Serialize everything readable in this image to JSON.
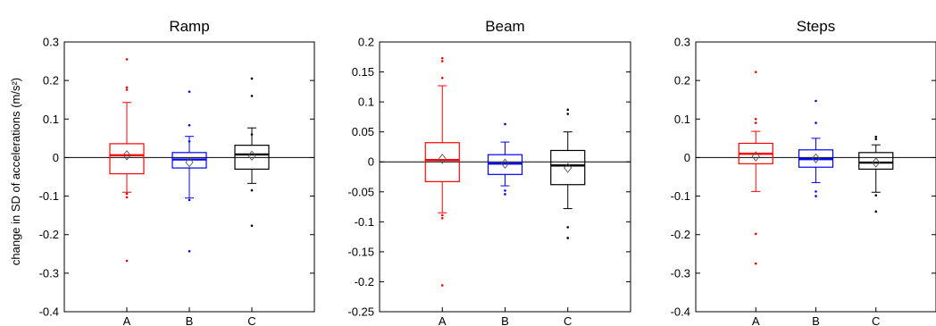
{
  "ylabel": "change in SD of accelerations (m/s²)",
  "chart_data": [
    {
      "type": "box",
      "title": "Ramp",
      "categories": [
        "A",
        "B",
        "C"
      ],
      "ylim": [
        -0.4,
        0.3
      ],
      "yticks": [
        -0.4,
        -0.3,
        -0.2,
        -0.1,
        0,
        0.1,
        0.2,
        0.3
      ],
      "ytick_labels": [
        "-0.4",
        "-0.3",
        "-0.2",
        "-0.1",
        "0",
        "0.1",
        "0.2",
        "0.3"
      ],
      "reference_line": 0,
      "boxes": [
        {
          "category": "A",
          "color": "#ff0000",
          "q1": -0.042,
          "median": 0.006,
          "q3": 0.036,
          "whisker_low": -0.09,
          "whisker_high": 0.143,
          "mean": 0.006,
          "outliers": [
            0.255,
            0.182,
            0.176,
            -0.094,
            -0.103,
            -0.268
          ]
        },
        {
          "category": "B",
          "color": "#0000ff",
          "q1": -0.027,
          "median": -0.005,
          "q3": 0.013,
          "whisker_low": -0.105,
          "whisker_high": 0.055,
          "mean": -0.012,
          "outliers": [
            0.171,
            0.084,
            0.042,
            -0.11,
            -0.243
          ]
        },
        {
          "category": "C",
          "color": "#000000",
          "q1": -0.03,
          "median": 0.008,
          "q3": 0.032,
          "whisker_low": -0.067,
          "whisker_high": 0.077,
          "mean": 0.005,
          "outliers": [
            0.205,
            0.16,
            0.06,
            -0.085,
            -0.177
          ]
        }
      ]
    },
    {
      "type": "box",
      "title": "Beam",
      "categories": [
        "A",
        "B",
        "C"
      ],
      "ylim": [
        -0.25,
        0.2
      ],
      "yticks": [
        -0.25,
        -0.2,
        -0.15,
        -0.1,
        -0.05,
        0,
        0.05,
        0.1,
        0.15,
        0.2
      ],
      "ytick_labels": [
        "-0.25",
        "-0.2",
        "-0.15",
        "-0.1",
        "-0.05",
        "0",
        "0.05",
        "0.1",
        "0.15",
        "0.2"
      ],
      "reference_line": 0,
      "boxes": [
        {
          "category": "A",
          "color": "#ff0000",
          "q1": -0.033,
          "median": 0.003,
          "q3": 0.032,
          "whisker_low": -0.085,
          "whisker_high": 0.127,
          "mean": 0.005,
          "outliers": [
            0.173,
            0.168,
            0.14,
            -0.089,
            -0.094,
            -0.206
          ]
        },
        {
          "category": "B",
          "color": "#0000ff",
          "q1": -0.021,
          "median": -0.003,
          "q3": 0.012,
          "whisker_low": -0.04,
          "whisker_high": 0.033,
          "mean": -0.003,
          "outliers": [
            0.063,
            -0.048,
            -0.054
          ]
        },
        {
          "category": "C",
          "color": "#000000",
          "q1": -0.038,
          "median": -0.006,
          "q3": 0.019,
          "whisker_low": -0.078,
          "whisker_high": 0.05,
          "mean": -0.01,
          "outliers": [
            0.087,
            0.08,
            -0.109,
            -0.127
          ]
        }
      ]
    },
    {
      "type": "box",
      "title": "Steps",
      "categories": [
        "A",
        "B",
        "C"
      ],
      "ylim": [
        -0.4,
        0.3
      ],
      "yticks": [
        -0.4,
        -0.3,
        -0.2,
        -0.1,
        0,
        0.1,
        0.2,
        0.3
      ],
      "ytick_labels": [
        "-0.4",
        "-0.3",
        "-0.2",
        "-0.1",
        "0",
        "0.1",
        "0.2",
        "0.3"
      ],
      "reference_line": 0,
      "boxes": [
        {
          "category": "A",
          "color": "#ff0000",
          "q1": -0.016,
          "median": 0.01,
          "q3": 0.037,
          "whisker_low": -0.088,
          "whisker_high": 0.068,
          "mean": 0.003,
          "outliers": [
            0.222,
            0.1,
            0.09,
            -0.198,
            -0.275
          ]
        },
        {
          "category": "B",
          "color": "#0000ff",
          "q1": -0.025,
          "median": -0.004,
          "q3": 0.02,
          "whisker_low": -0.065,
          "whisker_high": 0.05,
          "mean": -0.002,
          "outliers": [
            0.147,
            0.09,
            -0.088,
            -0.1
          ]
        },
        {
          "category": "C",
          "color": "#000000",
          "q1": -0.03,
          "median": -0.013,
          "q3": 0.013,
          "whisker_low": -0.09,
          "whisker_high": 0.033,
          "mean": -0.013,
          "outliers": [
            0.054,
            0.048,
            -0.098,
            -0.14
          ]
        }
      ]
    }
  ]
}
